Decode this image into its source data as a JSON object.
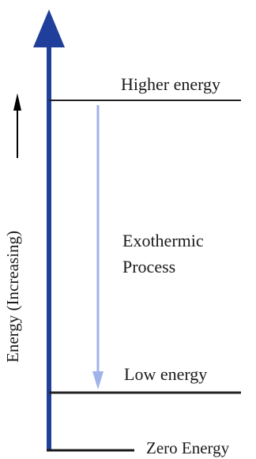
{
  "diagram": {
    "axis_label": "Energy (Increasing)",
    "levels": {
      "higher": "Higher energy",
      "low": "Low energy",
      "zero": "Zero Energy"
    },
    "process": {
      "line1": "Exothermic",
      "line2": "Process"
    },
    "colors": {
      "axis": "#1f3f9a",
      "level_lines": "#222222",
      "process_arrow": "#9fb3ea",
      "small_arrow": "#000000"
    }
  }
}
